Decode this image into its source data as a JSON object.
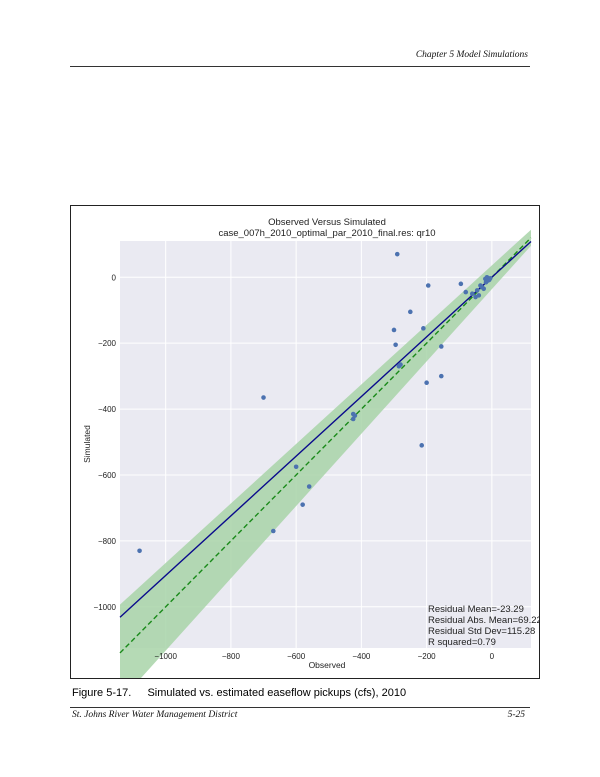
{
  "page_header": "Chapter 5 Model Simulations",
  "caption": {
    "label": "Figure 5-17.",
    "text": "Simulated vs. estimated easeflow pickups (cfs), 2010"
  },
  "footer": {
    "org": "St. Johns River Water Management District",
    "page": "5-25"
  },
  "chart_data": {
    "type": "scatter",
    "title": "Observed Versus Simulated",
    "subtitle": "case_007h_2010_optimal_par_2010_final.res: qr10",
    "xlabel": "Observed",
    "ylabel": "Simulated",
    "xlim": [
      -1140,
      120
    ],
    "ylim": [
      -1125,
      110
    ],
    "xticks": [
      -1000,
      -800,
      -600,
      -400,
      -200,
      0
    ],
    "yticks": [
      -1000,
      -800,
      -600,
      -400,
      -200,
      0
    ],
    "xtick_labels": [
      "−1000",
      "−800",
      "−600",
      "−400",
      "−200",
      "0"
    ],
    "ytick_labels": [
      "−1000",
      "−800",
      "−600",
      "−400",
      "−200",
      "0"
    ],
    "grid": true,
    "colors": {
      "points": "#4c72b0",
      "fit_line": "#0a0a8c",
      "one_to_one": "#1a8a1a",
      "band": "#a8d3a8",
      "plot_bg": "#eaeaf2"
    },
    "points": [
      [
        -1080,
        -830
      ],
      [
        -700,
        -365
      ],
      [
        -670,
        -770
      ],
      [
        -600,
        -575
      ],
      [
        -580,
        -690
      ],
      [
        -560,
        -635
      ],
      [
        -425,
        -415
      ],
      [
        -425,
        -430
      ],
      [
        -420,
        -420
      ],
      [
        -290,
        70
      ],
      [
        -300,
        -160
      ],
      [
        -295,
        -205
      ],
      [
        -285,
        -270
      ],
      [
        -280,
        -265
      ],
      [
        -250,
        -105
      ],
      [
        -215,
        -510
      ],
      [
        -210,
        -155
      ],
      [
        -200,
        -320
      ],
      [
        -195,
        -25
      ],
      [
        -155,
        -210
      ],
      [
        -155,
        -300
      ],
      [
        -95,
        -20
      ],
      [
        -80,
        -45
      ],
      [
        -60,
        -50
      ],
      [
        -50,
        -60
      ],
      [
        -45,
        -40
      ],
      [
        -40,
        -55
      ],
      [
        -35,
        -25
      ],
      [
        -30,
        -30
      ],
      [
        -25,
        -35
      ],
      [
        -20,
        -5
      ],
      [
        -18,
        -15
      ],
      [
        -15,
        0
      ],
      [
        -12,
        -10
      ],
      [
        -10,
        -5
      ],
      [
        -8,
        -8
      ],
      [
        -5,
        -3
      ]
    ],
    "fit_line": {
      "slope": 0.905,
      "intercept": 0
    },
    "one_to_one_line": {
      "slope": 1,
      "intercept": 0
    },
    "stats": [
      "Residual Mean=-23.29",
      "Residual Abs. Mean=69.22",
      "Residual Std Dev=115.28",
      "R squared=0.79"
    ]
  }
}
